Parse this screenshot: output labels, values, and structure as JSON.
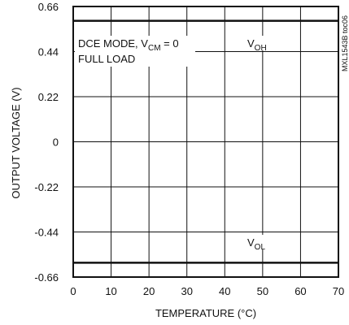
{
  "chart_data": {
    "type": "line",
    "xlabel": "TEMPERATURE (°C)",
    "ylabel": "OUTPUT VOLTAGE (V)",
    "xlim": [
      0,
      70
    ],
    "ylim": [
      -0.66,
      0.66
    ],
    "xticks": [
      0,
      10,
      20,
      30,
      40,
      50,
      60,
      70
    ],
    "yticks": [
      0.66,
      0.44,
      0.22,
      0,
      -0.22,
      -0.44,
      -0.66
    ],
    "ytick_labels": [
      "0.66",
      "0.44",
      "0.22",
      "0",
      "-0.22",
      "-0.44",
      "-0.66"
    ],
    "grid": true,
    "series": [
      {
        "name": "VOH",
        "x": [
          0,
          10,
          20,
          30,
          40,
          50,
          60,
          70
        ],
        "y": [
          0.59,
          0.59,
          0.59,
          0.59,
          0.59,
          0.59,
          0.59,
          0.59
        ]
      },
      {
        "name": "VOL",
        "x": [
          0,
          10,
          20,
          30,
          40,
          50,
          60,
          70
        ],
        "y": [
          -0.59,
          -0.59,
          -0.59,
          -0.59,
          -0.59,
          -0.59,
          -0.59,
          -0.59
        ]
      }
    ],
    "annotations": [
      {
        "text": "DCE MODE, V",
        "sub": "CM",
        "suffix": " = 0"
      },
      {
        "text": "FULL LOAD"
      }
    ],
    "series_labels": [
      {
        "main": "V",
        "sub": "OH"
      },
      {
        "main": "V",
        "sub": "OL"
      }
    ],
    "side_code": "MXL1543B toc06"
  }
}
